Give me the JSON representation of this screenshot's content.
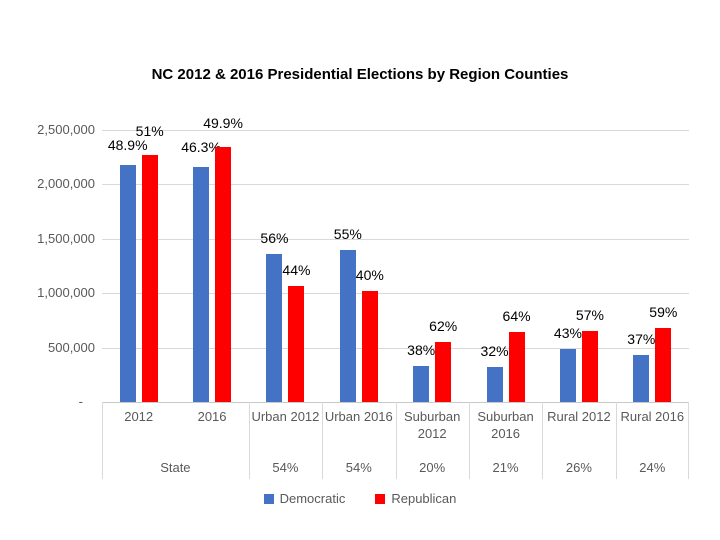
{
  "chart_data": {
    "type": "bar",
    "title": "NC 2012 & 2016 Presidential Elections by Region Counties",
    "ylim": [
      0,
      2500000
    ],
    "grid": true,
    "legend_position": "bottom",
    "y_axis": {
      "ticks": [
        {
          "label": "2,500,000",
          "value": 2500000
        },
        {
          "label": "2,000,000",
          "value": 2000000
        },
        {
          "label": "1,500,000",
          "value": 1500000
        },
        {
          "label": "1,000,000",
          "value": 1000000
        },
        {
          "label": "500,000",
          "value": 500000
        },
        {
          "label": "-",
          "value": 0
        }
      ]
    },
    "x_axis": {
      "categories": [
        "2012",
        "2016",
        "Urban 2012",
        "Urban 2016",
        "Suburban 2012",
        "Suburban 2016",
        "Rural 2012",
        "Rural 2016"
      ],
      "group_row": [
        {
          "label": "State",
          "span": 2
        },
        {
          "label": "54%",
          "span": 1
        },
        {
          "label": "54%",
          "span": 1
        },
        {
          "label": "20%",
          "span": 1
        },
        {
          "label": "21%",
          "span": 1
        },
        {
          "label": "26%",
          "span": 1
        },
        {
          "label": "24%",
          "span": 1
        }
      ]
    },
    "series": [
      {
        "name": "Democratic",
        "color": "#4472C4",
        "values": [
          2180000,
          2160000,
          1360000,
          1400000,
          330000,
          320000,
          490000,
          430000
        ],
        "labels": [
          "48.9%",
          "46.3%",
          "56%",
          "55%",
          "38%",
          "32%",
          "43%",
          "37%"
        ]
      },
      {
        "name": "Republican",
        "color": "#FF0000",
        "values": [
          2270000,
          2340000,
          1070000,
          1020000,
          550000,
          640000,
          650000,
          680000
        ],
        "labels": [
          "51%",
          "49.9%",
          "44%",
          "40%",
          "62%",
          "64%",
          "57%",
          "59%"
        ]
      }
    ]
  }
}
